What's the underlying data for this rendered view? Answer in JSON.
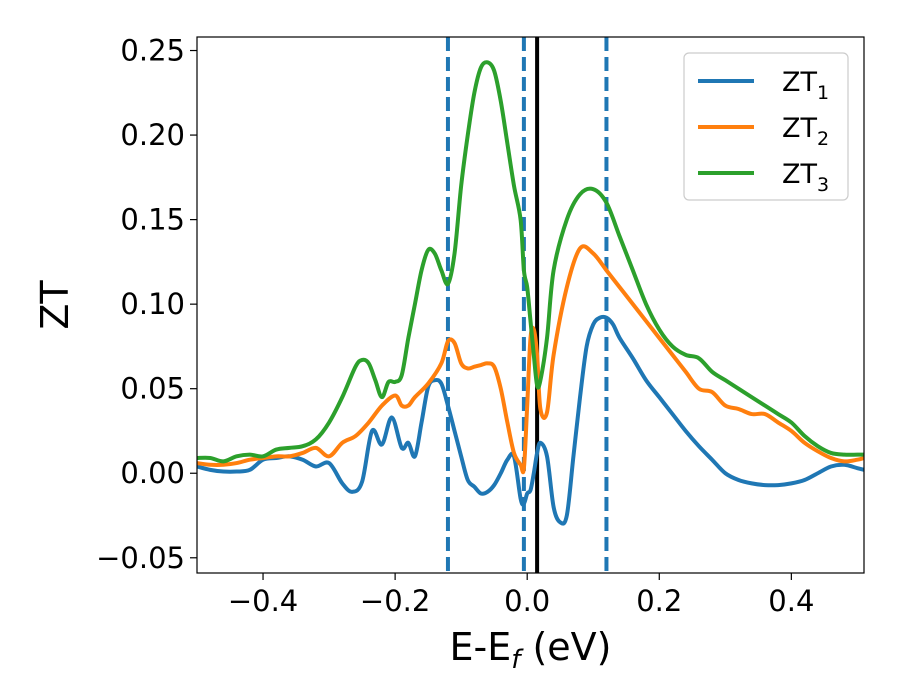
{
  "chart_data": {
    "type": "line",
    "title": "",
    "xlabel": {
      "main": "E-E",
      "sub": "f",
      "suffix": " (eV)"
    },
    "ylabel": "ZT",
    "xlim": [
      -0.5,
      0.51
    ],
    "ylim": [
      -0.059,
      0.258
    ],
    "x_ticks": [
      -0.4,
      -0.2,
      0.0,
      0.2,
      0.4
    ],
    "x_tick_labels": [
      "−0.4",
      "−0.2",
      "0.0",
      "0.2",
      "0.4"
    ],
    "y_ticks": [
      -0.05,
      0.0,
      0.05,
      0.1,
      0.15,
      0.2,
      0.25
    ],
    "y_tick_labels": [
      "−0.05",
      "0.00",
      "0.05",
      "0.10",
      "0.15",
      "0.20",
      "0.25"
    ],
    "grid": false,
    "legend_position": "top-right",
    "vertical_lines": [
      {
        "x": -0.12,
        "style": "dashed",
        "color": "#1f77b4"
      },
      {
        "x": -0.005,
        "style": "dashed",
        "color": "#1f77b4"
      },
      {
        "x": 0.12,
        "style": "dashed",
        "color": "#1f77b4"
      },
      {
        "x": 0.015,
        "style": "solid",
        "color": "#000000"
      }
    ],
    "series": [
      {
        "name": "ZT",
        "sub": "1",
        "color": "#1f77b4",
        "x": [
          -0.5,
          -0.48,
          -0.46,
          -0.44,
          -0.42,
          -0.4,
          -0.38,
          -0.36,
          -0.34,
          -0.32,
          -0.3,
          -0.28,
          -0.265,
          -0.25,
          -0.235,
          -0.22,
          -0.205,
          -0.19,
          -0.18,
          -0.17,
          -0.16,
          -0.15,
          -0.14,
          -0.13,
          -0.12,
          -0.11,
          -0.1,
          -0.09,
          -0.08,
          -0.07,
          -0.06,
          -0.05,
          -0.04,
          -0.03,
          -0.02,
          -0.01,
          -0.005,
          0.0,
          0.005,
          0.01,
          0.015,
          0.02,
          0.03,
          0.04,
          0.05,
          0.06,
          0.07,
          0.08,
          0.09,
          0.1,
          0.11,
          0.12,
          0.13,
          0.14,
          0.16,
          0.18,
          0.2,
          0.22,
          0.24,
          0.26,
          0.28,
          0.3,
          0.32,
          0.34,
          0.36,
          0.38,
          0.4,
          0.42,
          0.44,
          0.46,
          0.48,
          0.5,
          0.51
        ],
        "y": [
          0.004,
          0.002,
          0.001,
          0.001,
          0.002,
          0.008,
          0.009,
          0.01,
          0.008,
          0.004,
          0.006,
          -0.006,
          -0.011,
          -0.005,
          0.025,
          0.017,
          0.033,
          0.015,
          0.018,
          0.01,
          0.03,
          0.051,
          0.055,
          0.053,
          0.04,
          0.025,
          0.01,
          -0.004,
          -0.008,
          -0.012,
          -0.011,
          -0.007,
          0.0,
          0.008,
          0.01,
          -0.015,
          -0.018,
          -0.012,
          -0.01,
          0.0,
          0.012,
          0.018,
          0.01,
          -0.02,
          -0.029,
          -0.025,
          0.01,
          0.045,
          0.075,
          0.088,
          0.092,
          0.092,
          0.088,
          0.08,
          0.068,
          0.055,
          0.045,
          0.035,
          0.025,
          0.016,
          0.008,
          0.0,
          -0.004,
          -0.006,
          -0.007,
          -0.007,
          -0.006,
          -0.004,
          0.0,
          0.004,
          0.005,
          0.003,
          0.002
        ]
      },
      {
        "name": "ZT",
        "sub": "2",
        "color": "#ff7f0e",
        "x": [
          -0.5,
          -0.48,
          -0.46,
          -0.44,
          -0.42,
          -0.4,
          -0.38,
          -0.36,
          -0.34,
          -0.32,
          -0.3,
          -0.28,
          -0.26,
          -0.24,
          -0.22,
          -0.2,
          -0.19,
          -0.18,
          -0.17,
          -0.15,
          -0.13,
          -0.12,
          -0.11,
          -0.1,
          -0.09,
          -0.08,
          -0.07,
          -0.06,
          -0.05,
          -0.04,
          -0.03,
          -0.02,
          -0.01,
          -0.005,
          0.0,
          0.005,
          0.01,
          0.015,
          0.02,
          0.03,
          0.04,
          0.06,
          0.08,
          0.1,
          0.12,
          0.14,
          0.16,
          0.18,
          0.2,
          0.22,
          0.24,
          0.26,
          0.28,
          0.3,
          0.32,
          0.34,
          0.36,
          0.38,
          0.4,
          0.42,
          0.44,
          0.46,
          0.48,
          0.5,
          0.51
        ],
        "y": [
          0.006,
          0.005,
          0.005,
          0.006,
          0.008,
          0.009,
          0.01,
          0.01,
          0.012,
          0.015,
          0.01,
          0.018,
          0.022,
          0.03,
          0.04,
          0.046,
          0.04,
          0.04,
          0.045,
          0.053,
          0.065,
          0.078,
          0.077,
          0.065,
          0.062,
          0.063,
          0.064,
          0.065,
          0.063,
          0.05,
          0.03,
          0.012,
          0.005,
          0.003,
          0.04,
          0.08,
          0.085,
          0.07,
          0.038,
          0.036,
          0.07,
          0.11,
          0.133,
          0.13,
          0.12,
          0.11,
          0.1,
          0.09,
          0.08,
          0.07,
          0.06,
          0.05,
          0.048,
          0.04,
          0.038,
          0.035,
          0.035,
          0.03,
          0.025,
          0.018,
          0.013,
          0.009,
          0.007,
          0.008,
          0.009
        ]
      },
      {
        "name": "ZT",
        "sub": "3",
        "color": "#2ca02c",
        "x": [
          -0.5,
          -0.48,
          -0.46,
          -0.44,
          -0.42,
          -0.4,
          -0.38,
          -0.36,
          -0.34,
          -0.32,
          -0.3,
          -0.28,
          -0.26,
          -0.25,
          -0.24,
          -0.23,
          -0.22,
          -0.21,
          -0.2,
          -0.19,
          -0.18,
          -0.17,
          -0.16,
          -0.15,
          -0.14,
          -0.13,
          -0.12,
          -0.11,
          -0.1,
          -0.09,
          -0.08,
          -0.07,
          -0.06,
          -0.05,
          -0.04,
          -0.03,
          -0.02,
          -0.01,
          -0.005,
          0.0,
          0.005,
          0.01,
          0.015,
          0.02,
          0.03,
          0.04,
          0.06,
          0.08,
          0.1,
          0.12,
          0.14,
          0.16,
          0.18,
          0.2,
          0.22,
          0.24,
          0.26,
          0.28,
          0.3,
          0.32,
          0.34,
          0.36,
          0.38,
          0.4,
          0.42,
          0.44,
          0.46,
          0.48,
          0.5,
          0.51
        ],
        "y": [
          0.009,
          0.009,
          0.007,
          0.01,
          0.011,
          0.01,
          0.014,
          0.015,
          0.016,
          0.02,
          0.03,
          0.045,
          0.063,
          0.067,
          0.065,
          0.055,
          0.045,
          0.054,
          0.054,
          0.058,
          0.08,
          0.1,
          0.12,
          0.132,
          0.13,
          0.12,
          0.112,
          0.13,
          0.17,
          0.2,
          0.225,
          0.24,
          0.243,
          0.238,
          0.22,
          0.195,
          0.17,
          0.15,
          0.12,
          0.11,
          0.09,
          0.07,
          0.052,
          0.055,
          0.08,
          0.12,
          0.15,
          0.165,
          0.168,
          0.16,
          0.14,
          0.12,
          0.1,
          0.085,
          0.075,
          0.07,
          0.068,
          0.06,
          0.055,
          0.05,
          0.045,
          0.04,
          0.035,
          0.03,
          0.022,
          0.016,
          0.012,
          0.011,
          0.011,
          0.011
        ]
      }
    ]
  }
}
